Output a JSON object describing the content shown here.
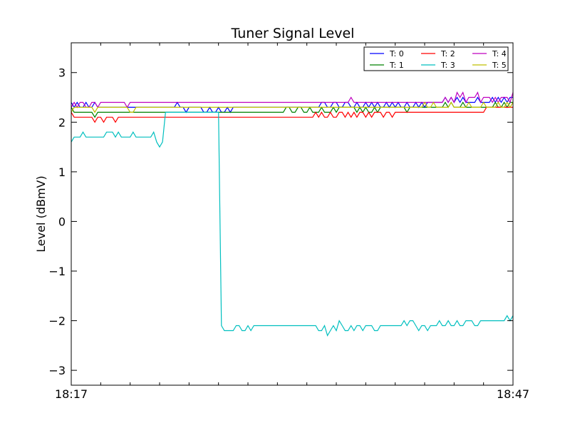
{
  "chart_data": {
    "type": "line",
    "title": "Tuner Signal Level",
    "xlabel": "",
    "ylabel": "Level (dBmV)",
    "x_range": [
      "18:17",
      "18:47"
    ],
    "x_ticks": [
      "18:17",
      "18:47"
    ],
    "ylim": [
      -3.3,
      3.6
    ],
    "y_ticks": [
      "−3",
      "−2",
      "−1",
      "0",
      "1",
      "2",
      "3"
    ],
    "y_tick_values": [
      -3,
      -2,
      -1,
      0,
      1,
      2,
      3
    ],
    "grid": false,
    "legend_position": "top-right",
    "x_minutes": [
      0.0,
      0.2,
      0.4,
      0.6,
      0.8,
      1.0,
      1.2,
      1.4,
      1.6,
      1.8,
      2.0,
      2.2,
      2.4,
      2.6,
      2.8,
      3.0,
      3.2,
      3.4,
      3.6,
      3.8,
      4.0,
      4.2,
      4.4,
      4.6,
      4.8,
      5.0,
      5.2,
      5.4,
      5.6,
      5.8,
      6.0,
      6.2,
      6.4,
      6.6,
      6.8,
      7.0,
      7.2,
      7.4,
      7.6,
      7.8,
      8.0,
      8.2,
      8.4,
      8.6,
      8.8,
      9.0,
      9.2,
      9.4,
      9.6,
      9.8,
      10.0,
      10.2,
      10.4,
      10.6,
      10.8,
      11.0,
      11.2,
      11.4,
      11.6,
      11.8,
      12.0,
      12.2,
      12.4,
      12.6,
      12.8,
      13.0,
      13.2,
      13.4,
      13.6,
      13.8,
      14.0,
      14.2,
      14.4,
      14.6,
      14.8,
      15.0,
      15.2,
      15.4,
      15.6,
      15.8,
      16.0,
      16.2,
      16.4,
      16.6,
      16.8,
      17.0,
      17.2,
      17.4,
      17.6,
      17.8,
      18.0,
      18.2,
      18.4,
      18.6,
      18.8,
      19.0,
      19.2,
      19.4,
      19.6,
      19.8,
      20.0,
      20.2,
      20.4,
      20.6,
      20.8,
      21.0,
      21.2,
      21.4,
      21.6,
      21.8,
      22.0,
      22.2,
      22.4,
      22.6,
      22.8,
      23.0,
      23.2,
      23.4,
      23.6,
      23.8,
      24.0,
      24.2,
      24.4,
      24.6,
      24.8,
      25.0,
      25.2,
      25.4,
      25.6,
      25.8,
      26.0,
      26.2,
      26.4,
      26.6,
      26.8,
      27.0,
      27.2,
      27.4,
      27.6,
      27.8,
      28.0,
      28.2,
      28.4,
      28.6,
      28.8,
      29.0,
      29.2,
      29.4,
      29.6,
      29.8,
      30.0
    ],
    "series": [
      {
        "name": "T: 0",
        "color": "#0000ff",
        "values": [
          2.4,
          2.3,
          2.4,
          2.3,
          2.3,
          2.4,
          2.3,
          2.3,
          2.4,
          2.3,
          2.3,
          2.3,
          2.3,
          2.3,
          2.3,
          2.3,
          2.3,
          2.3,
          2.3,
          2.3,
          2.3,
          2.3,
          2.3,
          2.3,
          2.3,
          2.3,
          2.3,
          2.3,
          2.3,
          2.3,
          2.3,
          2.3,
          2.3,
          2.3,
          2.3,
          2.3,
          2.4,
          2.3,
          2.3,
          2.2,
          2.3,
          2.3,
          2.3,
          2.3,
          2.3,
          2.2,
          2.2,
          2.3,
          2.2,
          2.2,
          2.3,
          2.2,
          2.2,
          2.3,
          2.2,
          2.3,
          2.3,
          2.3,
          2.3,
          2.3,
          2.3,
          2.3,
          2.3,
          2.3,
          2.3,
          2.3,
          2.3,
          2.3,
          2.3,
          2.3,
          2.3,
          2.3,
          2.3,
          2.3,
          2.3,
          2.3,
          2.3,
          2.3,
          2.3,
          2.3,
          2.3,
          2.3,
          2.3,
          2.3,
          2.3,
          2.4,
          2.4,
          2.3,
          2.3,
          2.4,
          2.4,
          2.3,
          2.3,
          2.4,
          2.4,
          2.3,
          2.3,
          2.4,
          2.3,
          2.3,
          2.4,
          2.3,
          2.4,
          2.3,
          2.4,
          2.3,
          2.3,
          2.4,
          2.3,
          2.4,
          2.3,
          2.4,
          2.3,
          2.3,
          2.4,
          2.3,
          2.3,
          2.4,
          2.3,
          2.4,
          2.3,
          2.4,
          2.4,
          2.4,
          2.4,
          2.4,
          2.4,
          2.5,
          2.4,
          2.5,
          2.4,
          2.5,
          2.4,
          2.5,
          2.4,
          2.4,
          2.4,
          2.4,
          2.5,
          2.4,
          2.4,
          2.4,
          2.4,
          2.5,
          2.4,
          2.5,
          2.4,
          2.5,
          2.4,
          2.5,
          2.5
        ]
      },
      {
        "name": "T: 1",
        "color": "#008000",
        "values": [
          2.3,
          2.2,
          2.2,
          2.2,
          2.2,
          2.2,
          2.2,
          2.2,
          2.1,
          2.2,
          2.2,
          2.2,
          2.2,
          2.2,
          2.2,
          2.2,
          2.2,
          2.2,
          2.2,
          2.2,
          2.2,
          2.2,
          2.2,
          2.2,
          2.2,
          2.2,
          2.2,
          2.2,
          2.2,
          2.2,
          2.2,
          2.2,
          2.2,
          2.2,
          2.2,
          2.2,
          2.2,
          2.2,
          2.2,
          2.2,
          2.2,
          2.2,
          2.2,
          2.2,
          2.2,
          2.2,
          2.2,
          2.2,
          2.2,
          2.2,
          2.2,
          2.2,
          2.2,
          2.2,
          2.2,
          2.2,
          2.2,
          2.2,
          2.2,
          2.2,
          2.2,
          2.2,
          2.2,
          2.2,
          2.2,
          2.2,
          2.2,
          2.2,
          2.2,
          2.2,
          2.2,
          2.2,
          2.2,
          2.3,
          2.3,
          2.2,
          2.2,
          2.3,
          2.3,
          2.2,
          2.2,
          2.3,
          2.2,
          2.2,
          2.2,
          2.3,
          2.2,
          2.2,
          2.2,
          2.3,
          2.2,
          2.3,
          2.3,
          2.3,
          2.3,
          2.3,
          2.3,
          2.2,
          2.3,
          2.2,
          2.3,
          2.2,
          2.2,
          2.3,
          2.2,
          2.3,
          2.3,
          2.3,
          2.3,
          2.3,
          2.3,
          2.3,
          2.3,
          2.3,
          2.2,
          2.3,
          2.3,
          2.3,
          2.3,
          2.3,
          2.3,
          2.3,
          2.3,
          2.3,
          2.3,
          2.3,
          2.3,
          2.4,
          2.3,
          2.4,
          2.3,
          2.3,
          2.3,
          2.4,
          2.3,
          2.3,
          2.3,
          2.3,
          2.3,
          2.3,
          2.3,
          2.3,
          2.3,
          2.3,
          2.4,
          2.3,
          2.3,
          2.4,
          2.3,
          2.4,
          2.4
        ]
      },
      {
        "name": "T: 2",
        "color": "#ff0000",
        "values": [
          2.2,
          2.1,
          2.1,
          2.1,
          2.1,
          2.1,
          2.1,
          2.1,
          2.0,
          2.1,
          2.1,
          2.0,
          2.1,
          2.1,
          2.1,
          2.0,
          2.1,
          2.1,
          2.1,
          2.1,
          2.1,
          2.1,
          2.1,
          2.1,
          2.1,
          2.1,
          2.1,
          2.1,
          2.1,
          2.1,
          2.1,
          2.1,
          2.1,
          2.1,
          2.1,
          2.1,
          2.1,
          2.1,
          2.1,
          2.1,
          2.1,
          2.1,
          2.1,
          2.1,
          2.1,
          2.1,
          2.1,
          2.1,
          2.1,
          2.1,
          2.1,
          2.1,
          2.1,
          2.1,
          2.1,
          2.1,
          2.1,
          2.1,
          2.1,
          2.1,
          2.1,
          2.1,
          2.1,
          2.1,
          2.1,
          2.1,
          2.1,
          2.1,
          2.1,
          2.1,
          2.1,
          2.1,
          2.1,
          2.1,
          2.1,
          2.1,
          2.1,
          2.1,
          2.1,
          2.1,
          2.1,
          2.1,
          2.1,
          2.2,
          2.1,
          2.2,
          2.1,
          2.1,
          2.2,
          2.1,
          2.1,
          2.2,
          2.2,
          2.1,
          2.2,
          2.1,
          2.2,
          2.1,
          2.2,
          2.2,
          2.1,
          2.2,
          2.1,
          2.2,
          2.2,
          2.2,
          2.1,
          2.2,
          2.2,
          2.1,
          2.2,
          2.2,
          2.2,
          2.2,
          2.2,
          2.2,
          2.2,
          2.2,
          2.2,
          2.2,
          2.2,
          2.2,
          2.2,
          2.2,
          2.2,
          2.2,
          2.2,
          2.2,
          2.2,
          2.2,
          2.2,
          2.2,
          2.2,
          2.2,
          2.2,
          2.2,
          2.2,
          2.2,
          2.2,
          2.2,
          2.2,
          2.3,
          2.3,
          2.3,
          2.3,
          2.3,
          2.3,
          2.3,
          2.3,
          2.3,
          2.3
        ]
      },
      {
        "name": "T: 3",
        "color": "#00bfbf",
        "values": [
          1.6,
          1.7,
          1.7,
          1.7,
          1.8,
          1.7,
          1.7,
          1.7,
          1.7,
          1.7,
          1.7,
          1.7,
          1.8,
          1.8,
          1.8,
          1.7,
          1.8,
          1.7,
          1.7,
          1.7,
          1.7,
          1.8,
          1.7,
          1.7,
          1.7,
          1.7,
          1.7,
          1.7,
          1.8,
          1.6,
          1.5,
          1.6,
          2.2,
          2.2,
          2.2,
          2.2,
          2.2,
          2.2,
          2.2,
          2.2,
          2.2,
          2.2,
          2.2,
          2.2,
          2.2,
          2.2,
          2.2,
          2.2,
          2.2,
          2.2,
          2.2,
          -2.1,
          -2.2,
          -2.2,
          -2.2,
          -2.2,
          -2.1,
          -2.1,
          -2.2,
          -2.2,
          -2.1,
          -2.2,
          -2.1,
          -2.1,
          -2.1,
          -2.1,
          -2.1,
          -2.1,
          -2.1,
          -2.1,
          -2.1,
          -2.1,
          -2.1,
          -2.1,
          -2.1,
          -2.1,
          -2.1,
          -2.1,
          -2.1,
          -2.1,
          -2.1,
          -2.1,
          -2.1,
          -2.1,
          -2.2,
          -2.2,
          -2.1,
          -2.3,
          -2.2,
          -2.1,
          -2.2,
          -2.0,
          -2.1,
          -2.2,
          -2.2,
          -2.1,
          -2.2,
          -2.1,
          -2.1,
          -2.2,
          -2.1,
          -2.1,
          -2.1,
          -2.2,
          -2.2,
          -2.1,
          -2.1,
          -2.1,
          -2.1,
          -2.1,
          -2.1,
          -2.1,
          -2.1,
          -2.0,
          -2.1,
          -2.0,
          -2.0,
          -2.1,
          -2.2,
          -2.1,
          -2.1,
          -2.2,
          -2.1,
          -2.1,
          -2.1,
          -2.0,
          -2.1,
          -2.1,
          -2.0,
          -2.1,
          -2.1,
          -2.0,
          -2.1,
          -2.1,
          -2.0,
          -2.0,
          -2.0,
          -2.1,
          -2.1,
          -2.0,
          -2.0,
          -2.0,
          -2.0,
          -2.0,
          -2.0,
          -2.0,
          -2.0,
          -2.0,
          -1.9,
          -2.0,
          -1.9
        ]
      },
      {
        "name": "T: 4",
        "color": "#bf00bf",
        "values": [
          2.3,
          2.4,
          2.3,
          2.4,
          2.4,
          2.3,
          2.3,
          2.4,
          2.4,
          2.3,
          2.4,
          2.4,
          2.4,
          2.4,
          2.4,
          2.4,
          2.4,
          2.4,
          2.4,
          2.3,
          2.4,
          2.4,
          2.4,
          2.4,
          2.4,
          2.4,
          2.4,
          2.4,
          2.4,
          2.4,
          2.4,
          2.4,
          2.4,
          2.4,
          2.4,
          2.4,
          2.4,
          2.4,
          2.4,
          2.4,
          2.4,
          2.4,
          2.4,
          2.4,
          2.4,
          2.4,
          2.4,
          2.4,
          2.4,
          2.4,
          2.4,
          2.4,
          2.4,
          2.4,
          2.4,
          2.4,
          2.4,
          2.4,
          2.4,
          2.4,
          2.4,
          2.4,
          2.4,
          2.4,
          2.4,
          2.4,
          2.4,
          2.4,
          2.4,
          2.4,
          2.4,
          2.4,
          2.4,
          2.4,
          2.4,
          2.4,
          2.4,
          2.4,
          2.4,
          2.4,
          2.4,
          2.4,
          2.4,
          2.4,
          2.4,
          2.4,
          2.4,
          2.4,
          2.4,
          2.4,
          2.4,
          2.4,
          2.4,
          2.4,
          2.4,
          2.5,
          2.4,
          2.4,
          2.4,
          2.4,
          2.4,
          2.4,
          2.4,
          2.4,
          2.4,
          2.4,
          2.4,
          2.4,
          2.4,
          2.4,
          2.4,
          2.4,
          2.4,
          2.4,
          2.4,
          2.4,
          2.4,
          2.4,
          2.4,
          2.4,
          2.4,
          2.4,
          2.4,
          2.4,
          2.4,
          2.4,
          2.4,
          2.5,
          2.4,
          2.5,
          2.4,
          2.6,
          2.5,
          2.6,
          2.4,
          2.5,
          2.5,
          2.5,
          2.6,
          2.4,
          2.5,
          2.5,
          2.5,
          2.4,
          2.5,
          2.4,
          2.5,
          2.5,
          2.5,
          2.4,
          2.6
        ]
      },
      {
        "name": "T: 5",
        "color": "#bfbf00",
        "values": [
          2.2,
          2.3,
          2.3,
          2.3,
          2.3,
          2.3,
          2.3,
          2.3,
          2.2,
          2.3,
          2.3,
          2.3,
          2.3,
          2.3,
          2.3,
          2.3,
          2.3,
          2.3,
          2.3,
          2.3,
          2.2,
          2.2,
          2.3,
          2.3,
          2.3,
          2.3,
          2.3,
          2.3,
          2.3,
          2.3,
          2.3,
          2.3,
          2.3,
          2.3,
          2.3,
          2.3,
          2.3,
          2.3,
          2.3,
          2.3,
          2.3,
          2.3,
          2.3,
          2.3,
          2.3,
          2.3,
          2.3,
          2.3,
          2.3,
          2.3,
          2.3,
          2.3,
          2.3,
          2.3,
          2.3,
          2.3,
          2.3,
          2.3,
          2.3,
          2.3,
          2.3,
          2.3,
          2.3,
          2.3,
          2.3,
          2.3,
          2.3,
          2.3,
          2.3,
          2.3,
          2.3,
          2.3,
          2.3,
          2.3,
          2.3,
          2.3,
          2.3,
          2.3,
          2.3,
          2.3,
          2.3,
          2.3,
          2.3,
          2.3,
          2.3,
          2.3,
          2.3,
          2.3,
          2.3,
          2.3,
          2.3,
          2.3,
          2.3,
          2.3,
          2.3,
          2.3,
          2.3,
          2.3,
          2.3,
          2.3,
          2.3,
          2.3,
          2.3,
          2.3,
          2.3,
          2.3,
          2.3,
          2.3,
          2.3,
          2.3,
          2.3,
          2.3,
          2.3,
          2.3,
          2.3,
          2.3,
          2.3,
          2.3,
          2.3,
          2.3,
          2.4,
          2.3,
          2.3,
          2.4,
          2.3,
          2.3,
          2.3,
          2.3,
          2.3,
          2.4,
          2.3,
          2.3,
          2.3,
          2.3,
          2.3,
          2.4,
          2.3,
          2.3,
          2.3,
          2.3,
          2.4,
          2.3,
          2.3,
          2.3,
          2.3,
          2.4,
          2.3,
          2.3,
          2.4,
          2.3,
          2.4
        ]
      }
    ]
  }
}
